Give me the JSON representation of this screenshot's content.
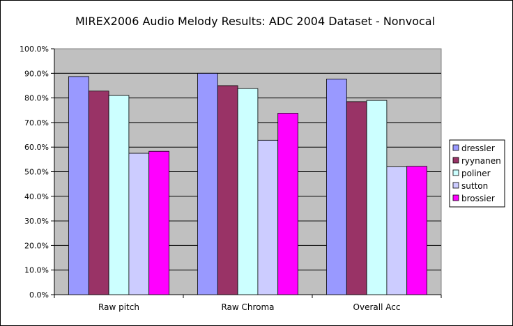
{
  "chart_data": {
    "type": "bar",
    "title": "MIREX2006 Audio Melody Results: ADC 2004 Dataset - Nonvocal",
    "xlabel": "",
    "ylabel": "",
    "categories": [
      "Raw pitch",
      "Raw Chroma",
      "Overall Acc"
    ],
    "ylim": [
      0,
      100
    ],
    "yticks": [
      "0.0%",
      "10.0%",
      "20.0%",
      "30.0%",
      "40.0%",
      "50.0%",
      "60.0%",
      "70.0%",
      "80.0%",
      "90.0%",
      "100.0%"
    ],
    "grid": true,
    "legend_position": "right",
    "plot_background": "#c0c0c0",
    "series": [
      {
        "name": "dressler",
        "color": "#9999ff",
        "values": [
          88.7,
          90.0,
          87.7
        ]
      },
      {
        "name": "ryynanen",
        "color": "#993366",
        "values": [
          82.8,
          85.0,
          78.5
        ]
      },
      {
        "name": "poliner",
        "color": "#ccffff",
        "values": [
          81.0,
          83.8,
          79.0
        ]
      },
      {
        "name": "sutton",
        "color": "#ccccff",
        "values": [
          57.5,
          62.8,
          52.0
        ]
      },
      {
        "name": "brossier",
        "color": "#ff00ff",
        "values": [
          58.3,
          73.8,
          52.2
        ]
      }
    ]
  }
}
